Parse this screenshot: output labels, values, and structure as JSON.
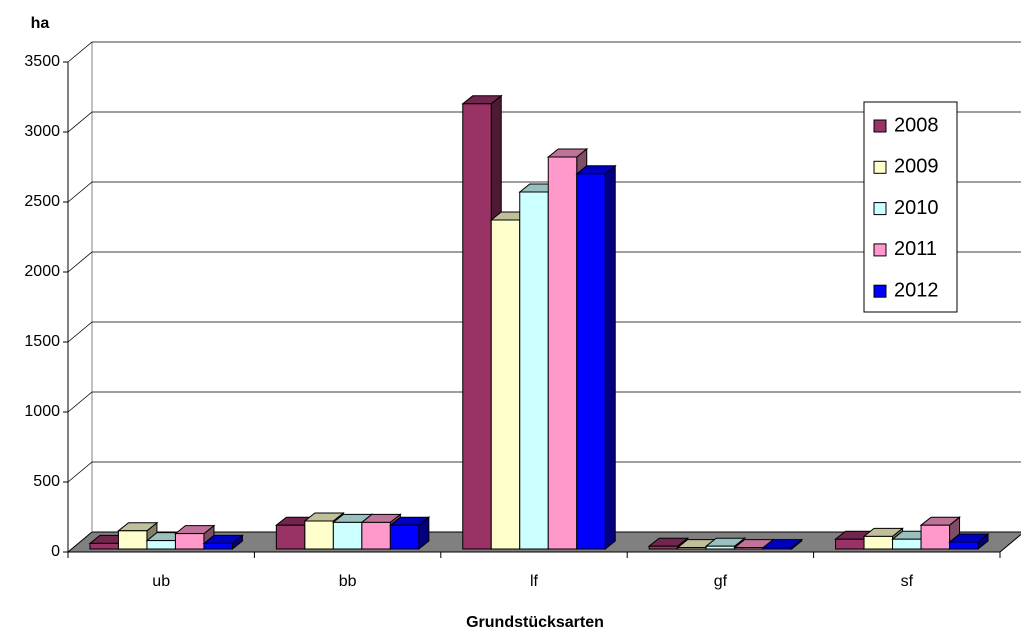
{
  "chart_data": {
    "type": "bar3d",
    "y_label": "ha",
    "x_label": "Grundstücksarten",
    "categories": [
      "ub",
      "bb",
      "lf",
      "gf",
      "sf"
    ],
    "series": [
      {
        "name": "2008",
        "color": "#993366",
        "values": [
          40,
          170,
          3180,
          20,
          70
        ]
      },
      {
        "name": "2009",
        "color": "#ffffcc",
        "values": [
          130,
          200,
          2350,
          10,
          90
        ]
      },
      {
        "name": "2010",
        "color": "#ccffff",
        "values": [
          60,
          190,
          2550,
          20,
          70
        ]
      },
      {
        "name": "2011",
        "color": "#ff99cc",
        "values": [
          110,
          190,
          2800,
          10,
          170
        ]
      },
      {
        "name": "2012",
        "color": "#0000ff",
        "values": [
          40,
          170,
          2680,
          10,
          50
        ]
      }
    ],
    "ylim": [
      0,
      3500
    ],
    "yticks": [
      0,
      500,
      1000,
      1500,
      2000,
      2500,
      3000,
      3500
    ],
    "grid": true,
    "legend": "right"
  }
}
